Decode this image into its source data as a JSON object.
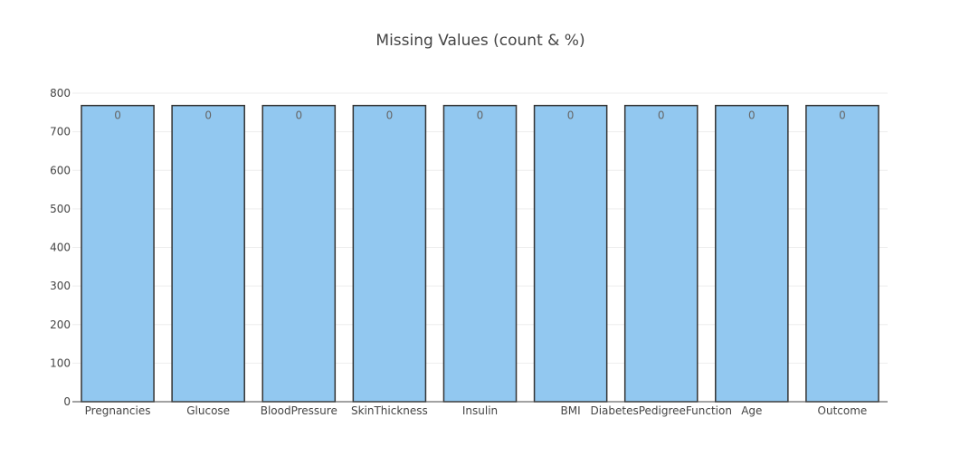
{
  "chart_data": {
    "type": "bar",
    "title": "Missing Values (count & %)",
    "xlabel": "",
    "ylabel": "",
    "categories": [
      "Pregnancies",
      "Glucose",
      "BloodPressure",
      "SkinThickness",
      "Insulin",
      "BMI",
      "DiabetesPedigreeFunction",
      "Age",
      "Outcome"
    ],
    "values": [
      768,
      768,
      768,
      768,
      768,
      768,
      768,
      768,
      768
    ],
    "data_labels": [
      "0",
      "0",
      "0",
      "0",
      "0",
      "0",
      "0",
      "0",
      "0"
    ],
    "ylim": [
      0,
      800
    ],
    "yticks": [
      0,
      100,
      200,
      300,
      400,
      500,
      600,
      700,
      800
    ],
    "grid": true,
    "bar_color": "#92c8f0",
    "bar_edge_color": "#333333"
  }
}
